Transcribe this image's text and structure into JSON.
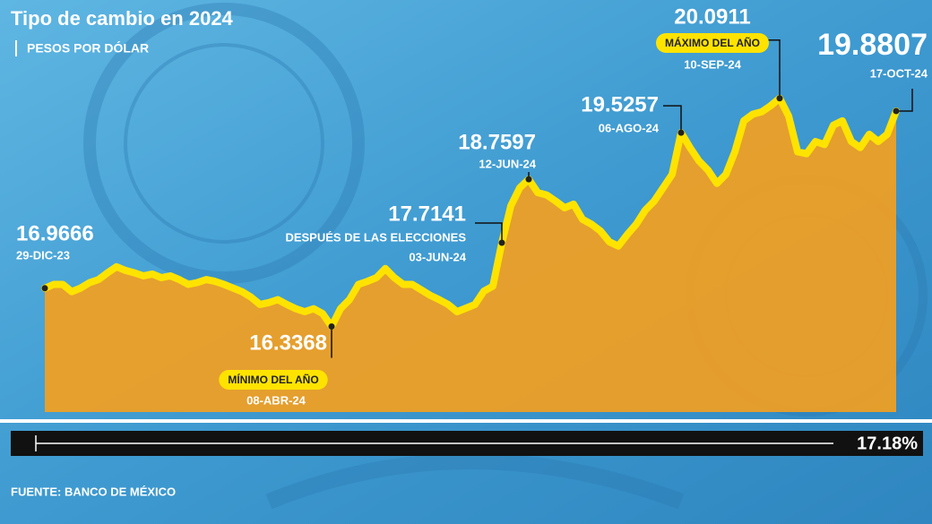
{
  "chart_data": {
    "type": "area",
    "title": "Tipo de cambio en 2024",
    "subtitle": "PESOS POR DÓLAR",
    "source": "FUENTE: BANCO DE MÉXICO",
    "categories": [
      null,
      null,
      null,
      null,
      null,
      null,
      null,
      null,
      null,
      null,
      null,
      null,
      null,
      null,
      null,
      null,
      null,
      null,
      null,
      null,
      null,
      null,
      null,
      null,
      null,
      null,
      null,
      null,
      null,
      null,
      null,
      null,
      null,
      null,
      null,
      null,
      null,
      null,
      null,
      null,
      null,
      null,
      null,
      null,
      null,
      null,
      null,
      null,
      null,
      null,
      null,
      null,
      null,
      null,
      null,
      null,
      null,
      null,
      null,
      null,
      null,
      null,
      null,
      null,
      null,
      null,
      null,
      null,
      null,
      null,
      null,
      null,
      null,
      null,
      null,
      null,
      null,
      null,
      null,
      null,
      null,
      null,
      null,
      null,
      null,
      null,
      null,
      null,
      null,
      null,
      null,
      null,
      null,
      null,
      null,
      null
    ],
    "values": [
      16.9666,
      17.03,
      17.03,
      16.91,
      16.97,
      17.06,
      17.11,
      17.22,
      17.32,
      17.26,
      17.22,
      17.17,
      17.2,
      17.14,
      17.17,
      17.11,
      17.03,
      17.06,
      17.11,
      17.08,
      17.03,
      16.97,
      16.91,
      16.82,
      16.7,
      16.73,
      16.78,
      16.7,
      16.63,
      16.58,
      16.63,
      16.55,
      16.3368,
      16.63,
      16.78,
      17.03,
      17.08,
      17.14,
      17.29,
      17.14,
      17.03,
      17.03,
      16.94,
      16.85,
      16.78,
      16.7,
      16.58,
      16.64,
      16.7,
      16.92,
      17.0,
      17.7141,
      18.32,
      18.62,
      18.7597,
      18.54,
      18.5,
      18.4,
      18.29,
      18.35,
      18.1,
      18.02,
      17.91,
      17.73,
      17.66,
      17.85,
      18.02,
      18.25,
      18.4,
      18.62,
      18.84,
      19.5257,
      19.28,
      19.06,
      18.91,
      18.69,
      18.84,
      19.21,
      19.72,
      19.83,
      19.87,
      19.97,
      20.0911,
      19.8,
      19.21,
      19.18,
      19.38,
      19.33,
      19.65,
      19.72,
      19.38,
      19.28,
      19.5,
      19.38,
      19.5,
      19.8807
    ],
    "ylim": [
      14.93,
      20.5
    ],
    "line_color": "#ffe300",
    "fill_color": "#f7a01c",
    "annotations": [
      {
        "value": 16.9666,
        "date": "29-DIC-23"
      },
      {
        "value": 16.3368,
        "date": "08-ABR-24",
        "tag": "MÍNIMO DEL AÑO"
      },
      {
        "value": 17.7141,
        "date": "03-JUN-24",
        "note": "DESPUÉS DE LAS ELECCIONES"
      },
      {
        "value": 18.7597,
        "date": "12-JUN-24"
      },
      {
        "value": 19.5257,
        "date": "06-AGO-24"
      },
      {
        "value": 20.0911,
        "date": "10-SEP-24",
        "tag": "MÁXIMO DEL AÑO"
      },
      {
        "value": 19.8807,
        "date": "17-OCT-24"
      }
    ],
    "change": {
      "value": 17.18,
      "label": "17.18%"
    }
  }
}
